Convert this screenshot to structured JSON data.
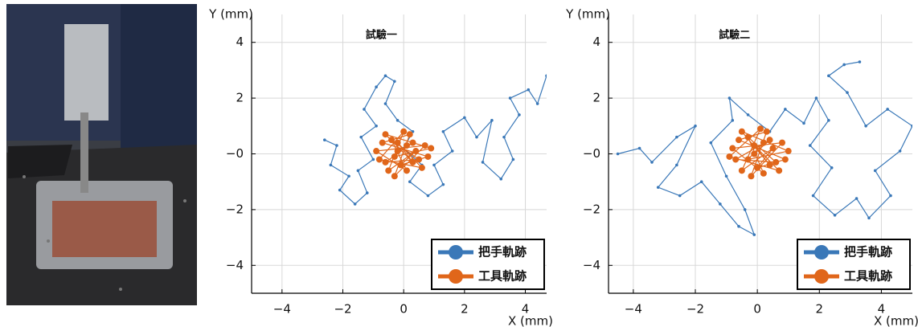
{
  "chart_data": [
    {
      "type": "line",
      "title": "試驗一",
      "x_label": "X (mm)",
      "y_label": "Y (mm)",
      "xlim": [
        -5,
        4.7
      ],
      "ylim": [
        -5,
        5
      ],
      "xticks": [
        {
          "value": -4,
          "label": "−4"
        },
        {
          "value": -2,
          "label": "−2"
        },
        0,
        2,
        4
      ],
      "yticks": [
        {
          "value": -4,
          "label": "−4"
        },
        {
          "value": -2,
          "label": "−2"
        },
        {
          "value": 0,
          "label": "−0"
        },
        2,
        4
      ],
      "grid": true,
      "legend": "lower right",
      "series": [
        {
          "name": "把手軌跡",
          "color": "#3a78b8",
          "x": [
            -2.6,
            -2.2,
            -2.4,
            -1.8,
            -2.1,
            -1.6,
            -1.2,
            -1.5,
            -1.0,
            -1.4,
            -0.9,
            -1.3,
            -0.9,
            -0.6,
            -0.3,
            -0.6,
            -0.2,
            0.3,
            0.0,
            0.6,
            0.2,
            0.8,
            1.3,
            1.0,
            1.6,
            1.3,
            2.0,
            2.4,
            2.9,
            2.6,
            3.2,
            3.6,
            3.3,
            3.8,
            3.5,
            4.1,
            4.4,
            4.7
          ],
          "y": [
            0.5,
            0.3,
            -0.4,
            -0.8,
            -1.3,
            -1.8,
            -1.4,
            -0.6,
            -0.2,
            0.6,
            1.0,
            1.6,
            2.4,
            2.8,
            2.6,
            1.8,
            1.2,
            0.8,
            0.2,
            -0.4,
            -1.0,
            -1.5,
            -1.1,
            -0.4,
            0.1,
            0.8,
            1.3,
            0.6,
            1.2,
            -0.3,
            -0.9,
            -0.2,
            0.6,
            1.4,
            2.0,
            2.3,
            1.8,
            2.8
          ]
        },
        {
          "name": "工具軌跡",
          "color": "#e0661a",
          "x": [
            -0.2,
            0.3,
            -0.6,
            0.5,
            -0.4,
            0.1,
            -0.9,
            0.7,
            -0.3,
            0.2,
            -0.7,
            0.8,
            -0.1,
            0.4,
            -0.5,
            0.0,
            -0.8,
            0.6,
            -0.2,
            0.3,
            -0.6,
            0.9,
            -0.3,
            0.1
          ],
          "y": [
            0.1,
            0.4,
            -0.3,
            -0.2,
            0.5,
            -0.6,
            0.1,
            0.3,
            -0.8,
            0.7,
            0.4,
            -0.1,
            -0.4,
            0.1,
            -0.6,
            0.8,
            -0.2,
            -0.5,
            0.4,
            -0.3,
            0.7,
            0.2,
            -0.1,
            0.3
          ]
        }
      ]
    },
    {
      "type": "line",
      "title": "試驗二",
      "x_label": "X (mm)",
      "y_label": "Y (mm)",
      "xlim": [
        -4.8,
        5.0
      ],
      "ylim": [
        -5,
        5
      ],
      "xticks": [
        {
          "value": -4,
          "label": "−4"
        },
        {
          "value": -2,
          "label": "−2"
        },
        0,
        2,
        4
      ],
      "yticks": [
        {
          "value": -4,
          "label": "−4"
        },
        {
          "value": -2,
          "label": "−2"
        },
        {
          "value": 0,
          "label": "−0"
        },
        2,
        4
      ],
      "grid": true,
      "legend": "lower right",
      "series": [
        {
          "name": "把手軌跡",
          "color": "#3a78b8",
          "x": [
            -4.5,
            -3.8,
            -3.4,
            -2.6,
            -2.0,
            -2.6,
            -3.2,
            -2.5,
            -1.8,
            -1.2,
            -0.6,
            -0.1,
            -0.4,
            -1.0,
            -1.5,
            -0.8,
            -0.9,
            -0.3,
            0.4,
            0.9,
            1.5,
            1.9,
            2.3,
            1.7,
            2.4,
            1.8,
            2.5,
            3.2,
            3.6,
            4.3,
            3.8,
            4.6,
            5.0,
            4.2,
            3.5,
            2.9,
            2.3,
            2.8,
            3.3
          ],
          "y": [
            0.0,
            0.2,
            -0.3,
            0.6,
            1.0,
            -0.4,
            -1.2,
            -1.5,
            -1.0,
            -1.8,
            -2.6,
            -2.9,
            -2.0,
            -0.8,
            0.4,
            1.2,
            2.0,
            1.4,
            0.8,
            1.6,
            1.1,
            2.0,
            1.2,
            0.3,
            -0.5,
            -1.5,
            -2.2,
            -1.6,
            -2.3,
            -1.5,
            -0.6,
            0.1,
            1.0,
            1.6,
            1.0,
            2.2,
            2.8,
            3.2,
            3.3
          ]
        },
        {
          "name": "工具軌跡",
          "color": "#e0661a",
          "x": [
            -0.1,
            0.4,
            -0.7,
            0.6,
            -0.3,
            0.2,
            -0.8,
            0.8,
            -0.2,
            0.3,
            -0.6,
            0.9,
            0.0,
            0.5,
            -0.5,
            0.1,
            -0.9,
            0.7,
            -0.1,
            0.4,
            -0.5,
            1.0,
            -0.3,
            0.2
          ],
          "y": [
            0.0,
            0.5,
            -0.2,
            -0.3,
            0.6,
            -0.7,
            0.2,
            0.4,
            -0.8,
            0.8,
            0.5,
            -0.2,
            -0.5,
            0.2,
            -0.6,
            0.9,
            -0.1,
            -0.6,
            0.3,
            -0.4,
            0.8,
            0.1,
            -0.2,
            0.4
          ]
        }
      ]
    }
  ]
}
